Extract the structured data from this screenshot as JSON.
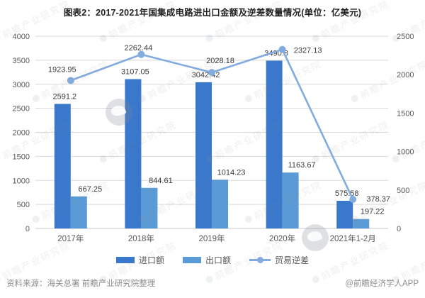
{
  "title": "图表2：2017-2021年国集成电路进出口金额及逆差数量情况(单位：亿美元)",
  "footer": {
    "source": "资料来源：海关总署 前瞻产业研究院整理",
    "credit": "@前瞻经济学人APP"
  },
  "watermark": {
    "text": "前瞻产业研究院"
  },
  "colors": {
    "background": "#FFFFFF",
    "gridline": "#D9D9D9",
    "axis_line": "#C9C9C9",
    "axis_text": "#595959",
    "value_text": "#3A3A3A",
    "title_text": "#1F1F1F",
    "footer_text": "#8C8C8C"
  },
  "chart_data": {
    "type": "bar",
    "subtype": "grouped-bars-with-line",
    "categories": [
      "2017年",
      "2018年",
      "2019年",
      "2020年",
      "2021年1-2月"
    ],
    "series": [
      {
        "name": "进口额",
        "type": "bar",
        "axis": "left",
        "color": "#3A78CC",
        "values": [
          2591.2,
          3107.05,
          3042.42,
          3490.8,
          575.58
        ]
      },
      {
        "name": "出口额",
        "type": "bar",
        "axis": "left",
        "color": "#5B9BD5",
        "values": [
          667.25,
          844.61,
          1014.23,
          1163.67,
          197.22
        ]
      },
      {
        "name": "贸易逆差",
        "type": "line",
        "axis": "right",
        "color": "#82ABDE",
        "values": [
          1923.95,
          2262.44,
          2028.18,
          2327.13,
          378.37
        ]
      }
    ],
    "left_axis": {
      "min": 0,
      "max": 4000,
      "step": 500
    },
    "right_axis": {
      "min": 0,
      "max": 2500,
      "step": 500
    },
    "grid": true,
    "legend_position": "bottom",
    "data_labels": true,
    "line_label_offsets": {
      "dx": [
        -12,
        -4,
        12,
        36,
        36
      ],
      "dy": [
        -12,
        -6,
        -13,
        5,
        3
      ]
    }
  }
}
